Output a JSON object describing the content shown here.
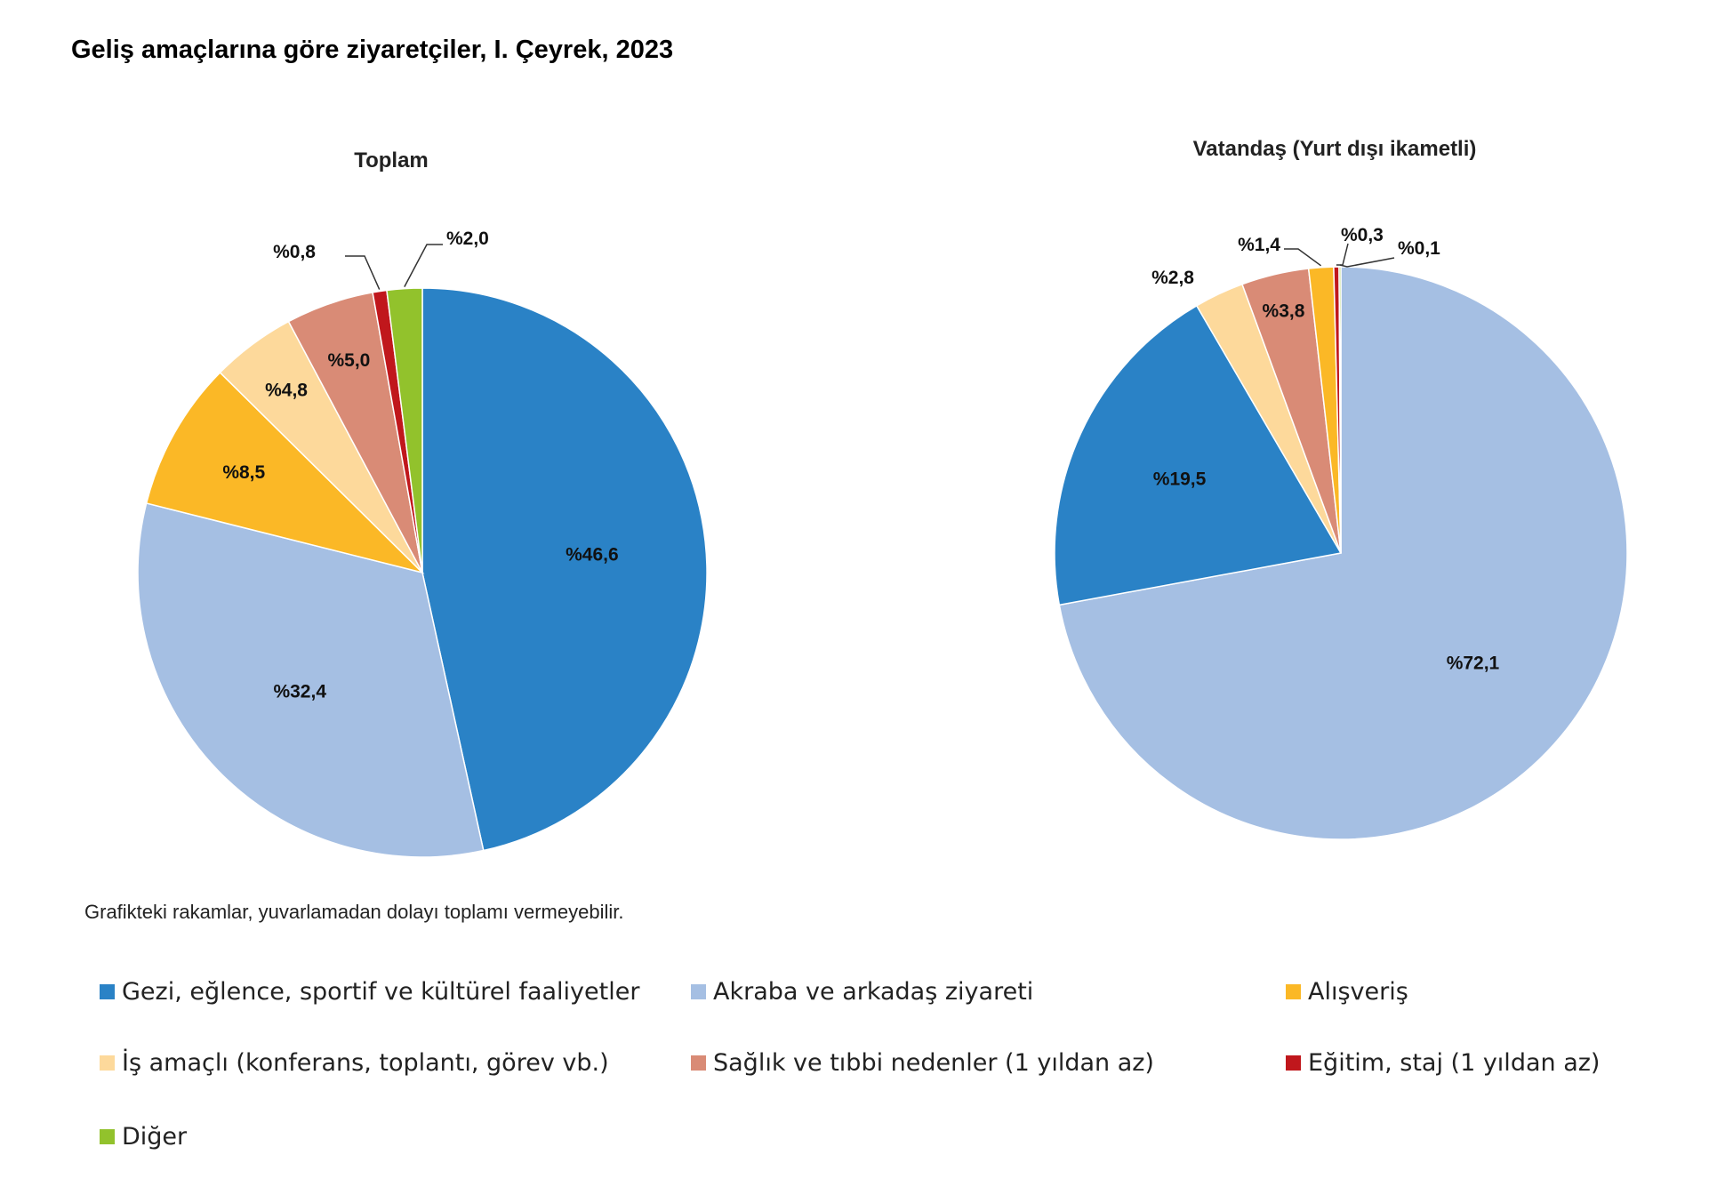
{
  "title": "Geliş amaçlarına göre ziyaretçiler, I. Çeyrek, 2023",
  "note": "Grafikteki rakamlar, yuvarlamadan dolayı toplamı vermeyebilir.",
  "categories": [
    "Gezi, eğlence, sportif ve kültürel faaliyetler",
    "Akraba ve arkadaş ziyareti",
    "Alışveriş",
    "İş amaçlı (konferans, toplantı, görev vb.)",
    "Sağlık ve tıbbi nedenler (1 yıldan az)",
    "Eğitim, staj (1 yıldan az)",
    "Diğer"
  ],
  "colors": [
    "#2a82c6",
    "#a5bfe3",
    "#fbb826",
    "#fdd99b",
    "#d98b76",
    "#c0171c",
    "#92c22c"
  ],
  "chart_data": [
    {
      "type": "pie",
      "title": "Toplam",
      "values": [
        46.6,
        32.4,
        8.5,
        4.8,
        5.0,
        0.8,
        2.0
      ],
      "labels": [
        "%46,6",
        "%32,4",
        "%8,5",
        "%4,8",
        "%5,0",
        "%0,8",
        "%2,0"
      ]
    },
    {
      "type": "pie",
      "title": "Vatandaş (Yurt dışı ikametli)",
      "values": [
        19.5,
        72.1,
        1.4,
        2.8,
        3.8,
        0.3,
        0.1
      ],
      "labels": [
        "%19,5",
        "%72,1",
        "%1,4",
        "%2,8",
        "%3,8",
        "%0,3",
        "%0,1"
      ]
    }
  ]
}
